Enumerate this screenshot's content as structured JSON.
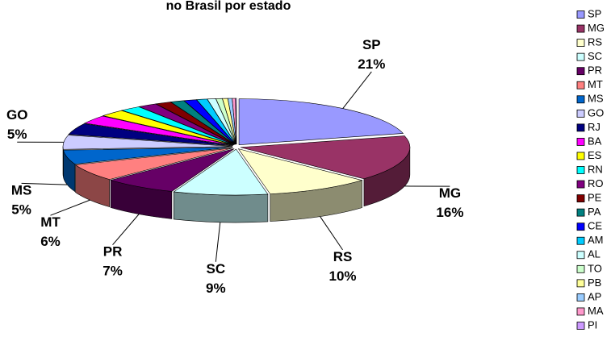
{
  "chart_data": {
    "type": "pie3d",
    "title": "no Brasil por estado",
    "categories": [
      "SP",
      "MG",
      "RS",
      "SC",
      "PR",
      "MT",
      "MS",
      "GO",
      "RJ",
      "BA",
      "ES",
      "RN",
      "RO",
      "PE",
      "PA",
      "CE",
      "AM",
      "AL",
      "TO",
      "PB",
      "AP",
      "MA",
      "PI"
    ],
    "values": [
      21,
      16,
      10,
      9,
      7,
      6,
      5,
      5,
      4,
      3,
      2.5,
      2,
      1.8,
      1.5,
      1.3,
      1.2,
      1,
      0.8,
      0.6,
      0.5,
      0.4,
      0.3,
      0.1
    ],
    "value_labels": [
      "21%",
      "16%",
      "10%",
      "9%",
      "7%",
      "6%",
      "5%",
      "5%",
      null,
      null,
      null,
      null,
      null,
      null,
      null,
      null,
      null,
      null,
      null,
      null,
      null,
      null,
      null
    ],
    "colors": [
      "#9999FF",
      "#993366",
      "#FFFFCC",
      "#CCFFFF",
      "#660066",
      "#FF8080",
      "#0066CC",
      "#CCCCFF",
      "#000080",
      "#FF00FF",
      "#FFFF00",
      "#00FFFF",
      "#800080",
      "#800000",
      "#008080",
      "#0000FF",
      "#00CCFF",
      "#CCFFFF",
      "#CCFFCC",
      "#FFFF99",
      "#99CCFF",
      "#FF99CC",
      "#CC99FF"
    ],
    "legend": "right"
  }
}
